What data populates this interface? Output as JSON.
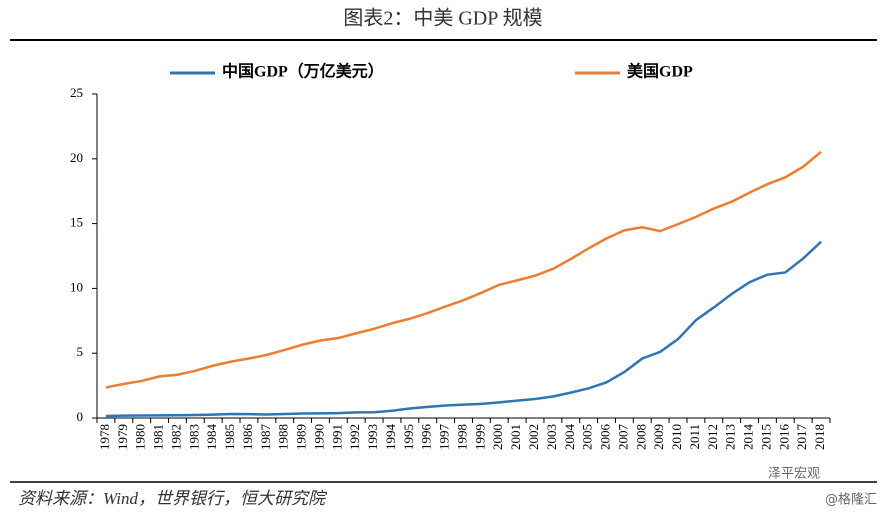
{
  "chart_data": {
    "type": "line",
    "title": "图表2：中美 GDP 规模",
    "categories": [
      "1978",
      "1979",
      "1980",
      "1981",
      "1982",
      "1983",
      "1984",
      "1985",
      "1986",
      "1987",
      "1988",
      "1989",
      "1990",
      "1991",
      "1992",
      "1993",
      "1994",
      "1995",
      "1996",
      "1997",
      "1998",
      "1999",
      "2000",
      "2001",
      "2002",
      "2003",
      "2004",
      "2005",
      "2006",
      "2007",
      "2008",
      "2009",
      "2010",
      "2011",
      "2012",
      "2013",
      "2014",
      "2015",
      "2016",
      "2017",
      "2018"
    ],
    "series": [
      {
        "name": "中国GDP（万亿美元）",
        "color": "#2e75b6",
        "values": [
          0.15,
          0.18,
          0.19,
          0.2,
          0.21,
          0.23,
          0.26,
          0.31,
          0.3,
          0.27,
          0.31,
          0.35,
          0.36,
          0.38,
          0.43,
          0.44,
          0.56,
          0.73,
          0.86,
          0.96,
          1.03,
          1.09,
          1.21,
          1.34,
          1.47,
          1.66,
          1.96,
          2.29,
          2.75,
          3.55,
          4.59,
          5.1,
          6.09,
          7.55,
          8.53,
          9.57,
          10.48,
          11.06,
          11.23,
          12.31,
          13.6
        ]
      },
      {
        "name": "美国GDP",
        "color": "#ed7d31",
        "values": [
          2.36,
          2.63,
          2.86,
          3.21,
          3.34,
          3.64,
          4.04,
          4.35,
          4.59,
          4.87,
          5.25,
          5.66,
          5.98,
          6.17,
          6.54,
          6.88,
          7.31,
          7.66,
          8.1,
          8.61,
          9.09,
          9.66,
          10.28,
          10.62,
          10.98,
          11.51,
          12.27,
          13.09,
          13.86,
          14.48,
          14.72,
          14.42,
          14.96,
          15.52,
          16.16,
          16.69,
          17.39,
          18.04,
          18.57,
          19.39,
          20.54
        ]
      }
    ],
    "ylim": [
      0,
      25
    ],
    "yticks": [
      0,
      5,
      10,
      15,
      20,
      25
    ],
    "grid": false,
    "legend": "top",
    "source": "资料来源：Wind，世界银行，恒大研究院"
  },
  "watermark": {
    "name": "泽平宏观",
    "handle": "@格隆汇"
  }
}
